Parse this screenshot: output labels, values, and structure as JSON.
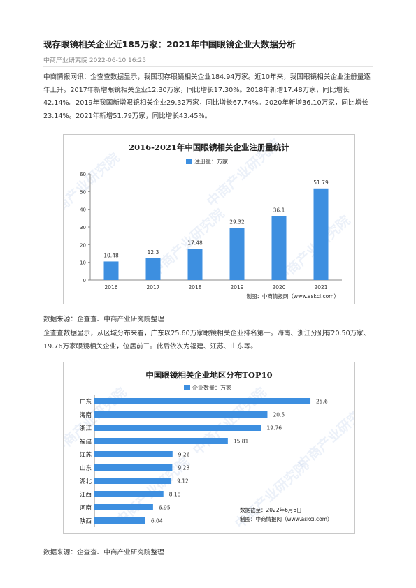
{
  "article": {
    "title": "现存眼镜相关企业近185万家：2021年中国眼镜企业大数据分析",
    "meta": "中商产业研究院 2022-06-10 16:25",
    "para1": "中商情报网讯：企查查数据显示，我国现存眼镜相关企业184.94万家。近10年来，我国眼镜相关企业注册量逐年上升。2017年新增眼镜相关企业12.30万家，同比增长17.30%。2018年新增17.48万家，同比增长42.14%。2019年我国新增眼镜相关企业29.32万家，同比增长67.74%。2020年新增36.10万家，同比增长23.14%。2021年新增51.79万家，同比增长43.45%。",
    "source1": "数据来源：企查查、中商产业研究院整理",
    "para2": "企查查数据显示，从区域分布来看，广东以25.60万家眼镜相关企业排名第一。海南、浙江分别有20.50万家、19.76万家眼镜相关企业，位居前三。此后依次为福建、江苏、山东等。",
    "source2": "数据来源：企查查、中商产业研究院整理"
  },
  "watermark": "中商产业研究院",
  "colors": {
    "bar": "#3d8fe0"
  },
  "chart_data": [
    {
      "type": "bar",
      "title": "2016-2021年中国眼镜相关企业注册量统计",
      "legend": "注册量：万家",
      "categories": [
        "2016",
        "2017",
        "2018",
        "2019",
        "2020",
        "2021"
      ],
      "values": [
        10.48,
        12.3,
        17.48,
        29.32,
        36.1,
        51.79
      ],
      "value_labels": [
        "10.48",
        "12.3",
        "17.48",
        "29.32",
        "36.1",
        "51.79"
      ],
      "yticks": [
        "0",
        "10",
        "20",
        "30",
        "40",
        "50",
        "60"
      ],
      "ylim": [
        0,
        60
      ],
      "grid": false,
      "credit": "制图：中商情报网（www.askci.com）"
    },
    {
      "type": "bar",
      "orientation": "horizontal",
      "title": "中国眼镜相关企业地区分布TOP10",
      "legend": "企业数量：万家",
      "categories": [
        "广东",
        "海南",
        "浙江",
        "福建",
        "江苏",
        "山东",
        "湖北",
        "江西",
        "河南",
        "陕西"
      ],
      "values": [
        25.6,
        20.5,
        19.76,
        15.81,
        9.26,
        9.23,
        9.12,
        8.18,
        6.95,
        6.04
      ],
      "value_labels": [
        "25.6",
        "20.5",
        "19.76",
        "15.81",
        "9.26",
        "9.23",
        "9.12",
        "8.18",
        "6.95",
        "6.04"
      ],
      "xlim": [
        0,
        28
      ],
      "grid": false,
      "credit_date": "数据截至：2022年6月6日",
      "credit": "制图：中商情报网（www.askci.com）"
    }
  ]
}
